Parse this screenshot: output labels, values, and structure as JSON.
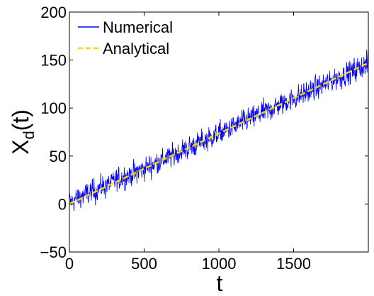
{
  "chart_data": {
    "type": "line",
    "xlabel": "t",
    "ylabel": "X",
    "ylabel_sub": "d",
    "ylabel_suffix": "(t)",
    "xlim": [
      0,
      2000
    ],
    "ylim": [
      -50,
      200
    ],
    "xticks": [
      0,
      500,
      1000,
      1500
    ],
    "xtick_labels": [
      "0",
      "500",
      "1000",
      "1500"
    ],
    "yticks": [
      -50,
      0,
      50,
      100,
      150,
      200
    ],
    "ytick_labels": [
      "−50",
      "0",
      "50",
      "100",
      "150",
      "200"
    ],
    "grid": false,
    "legend_position": "top-left",
    "series": [
      {
        "name": "Numerical",
        "color": "#0000ff",
        "style": "solid",
        "noisy": true,
        "x": [
          0,
          250,
          500,
          750,
          1000,
          1250,
          1500,
          1750,
          2000
        ],
        "y": [
          2,
          20,
          37,
          55,
          73,
          92,
          110,
          128,
          146
        ],
        "spread": 20
      },
      {
        "name": "Analytical",
        "color": "#ffd700",
        "style": "dashed",
        "x": [
          0,
          2000
        ],
        "y": [
          0,
          147
        ]
      }
    ]
  }
}
